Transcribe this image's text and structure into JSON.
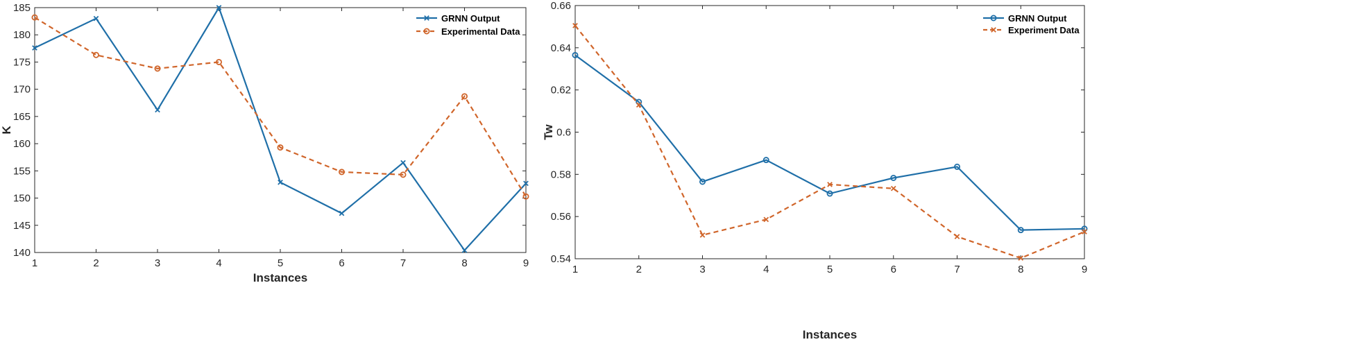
{
  "chart_data": [
    {
      "type": "line",
      "title": "",
      "xlabel": "Instances",
      "ylabel": "K",
      "x": [
        1,
        2,
        3,
        4,
        5,
        6,
        7,
        8,
        9
      ],
      "xlim": [
        1,
        9
      ],
      "ylim": [
        140,
        185
      ],
      "xticks": [
        1,
        2,
        3,
        4,
        5,
        6,
        7,
        8,
        9
      ],
      "yticks": [
        140,
        145,
        150,
        155,
        160,
        165,
        170,
        175,
        180,
        185
      ],
      "grid": false,
      "legend_position": "top-right",
      "series": [
        {
          "name": "GRNN Output",
          "color": "#1f6fa8",
          "style": "solid",
          "marker": "x",
          "values": [
            177.6,
            183.0,
            166.2,
            185.0,
            152.9,
            147.2,
            156.5,
            140.4,
            152.7
          ]
        },
        {
          "name": "Experimental Data",
          "color": "#d0652a",
          "style": "dashed",
          "marker": "circle",
          "values": [
            183.2,
            176.3,
            173.8,
            175.0,
            159.3,
            154.8,
            154.3,
            168.7,
            150.3
          ]
        }
      ]
    },
    {
      "type": "line",
      "title": "",
      "xlabel": "Instances",
      "ylabel": "Tw",
      "x": [
        1,
        2,
        3,
        4,
        5,
        6,
        7,
        8,
        9
      ],
      "xlim": [
        1,
        9
      ],
      "ylim": [
        0.54,
        0.66
      ],
      "xticks": [
        1,
        2,
        3,
        4,
        5,
        6,
        7,
        8,
        9
      ],
      "yticks": [
        0.54,
        0.56,
        0.58,
        0.6,
        0.62,
        0.64,
        0.66
      ],
      "grid": false,
      "legend_position": "top-right",
      "series": [
        {
          "name": "GRNN Output",
          "color": "#1f6fa8",
          "style": "solid",
          "marker": "circle",
          "values": [
            0.6365,
            0.6143,
            0.5765,
            0.5868,
            0.5709,
            0.5783,
            0.5836,
            0.5536,
            0.5542
          ]
        },
        {
          "name": "Experiment Data",
          "color": "#d0652a",
          "style": "dashed",
          "marker": "x",
          "values": [
            0.6505,
            0.6129,
            0.5512,
            0.5586,
            0.5752,
            0.5733,
            0.5505,
            0.5403,
            0.5528
          ]
        }
      ]
    }
  ]
}
